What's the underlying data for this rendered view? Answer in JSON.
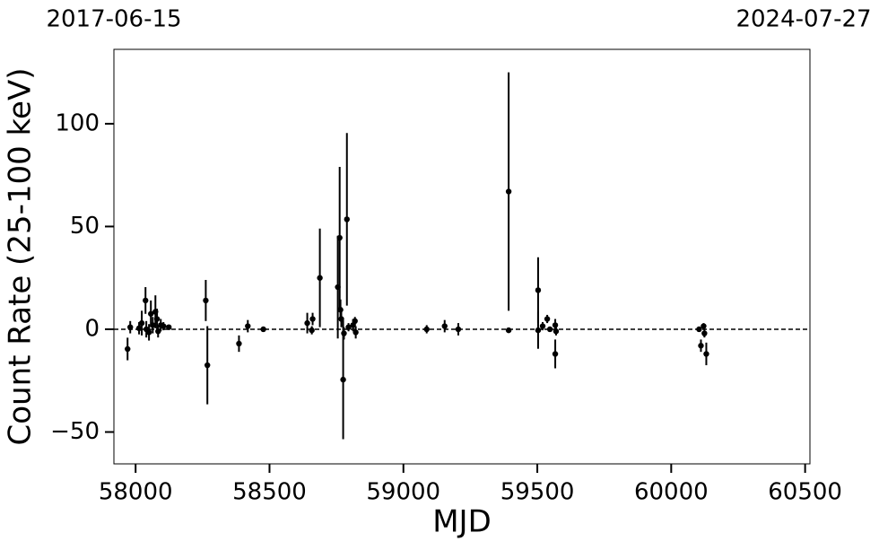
{
  "chart_data": {
    "type": "errorbar",
    "x_label": "MJD",
    "y_label": "Count Rate (25-100 keV)",
    "top_axis_labels": [
      "2017-06-15",
      "2024-07-27"
    ],
    "xlim": [
      57919,
      60518
    ],
    "ylim": [
      -65.5,
      136.2
    ],
    "xticks": [
      58000,
      58500,
      59000,
      59500,
      60000,
      60500
    ],
    "yticks": [
      {
        "value": -50,
        "label": "−50"
      },
      0,
      50,
      100
    ],
    "hline": 0,
    "color": "#000000",
    "series": [
      {
        "x": [
          57970,
          57980,
          58013,
          58023,
          58037,
          58040,
          58050,
          58057,
          58064,
          58074,
          58080,
          58084,
          58094,
          58104,
          58124,
          58262,
          58268,
          58386,
          58419,
          58477,
          58641,
          58661,
          58658,
          58688,
          58755,
          58762,
          58765,
          58768,
          58775,
          58789,
          58778,
          58795,
          58812,
          58819,
          58822,
          59087,
          59154,
          59205,
          59393,
          59393,
          59503,
          59503,
          59520,
          59537,
          59547,
          59567,
          59567,
          59570,
          60104,
          60111,
          60121,
          60124,
          60131
        ],
        "values": [
          -9.6,
          1,
          0.5,
          3,
          14,
          0,
          -1.5,
          7.5,
          2,
          8.5,
          5,
          -1,
          2,
          1.5,
          1,
          14,
          -17.5,
          -7,
          1.5,
          0,
          3,
          5,
          -0.5,
          25,
          20.5,
          44.5,
          9.5,
          5,
          -24.5,
          53.5,
          -2,
          1,
          2,
          4,
          -1.5,
          0,
          1.5,
          0,
          67,
          -0.5,
          19,
          -0.5,
          1.5,
          5,
          0,
          2,
          -12,
          -1,
          0,
          -8,
          1.5,
          -2,
          -12
        ],
        "errors": [
          5.5,
          3,
          3,
          6,
          6.5,
          4,
          4,
          6.5,
          4,
          8,
          5,
          3,
          3,
          2,
          1,
          10,
          19,
          4,
          3,
          1,
          5,
          3,
          2,
          24,
          25,
          34.5,
          5,
          4,
          29,
          42,
          3,
          2,
          3,
          2,
          3,
          2,
          3,
          3,
          58,
          1,
          16,
          9,
          2,
          2,
          1,
          3,
          7,
          2,
          1,
          3,
          1.5,
          2,
          5.5
        ]
      }
    ]
  }
}
